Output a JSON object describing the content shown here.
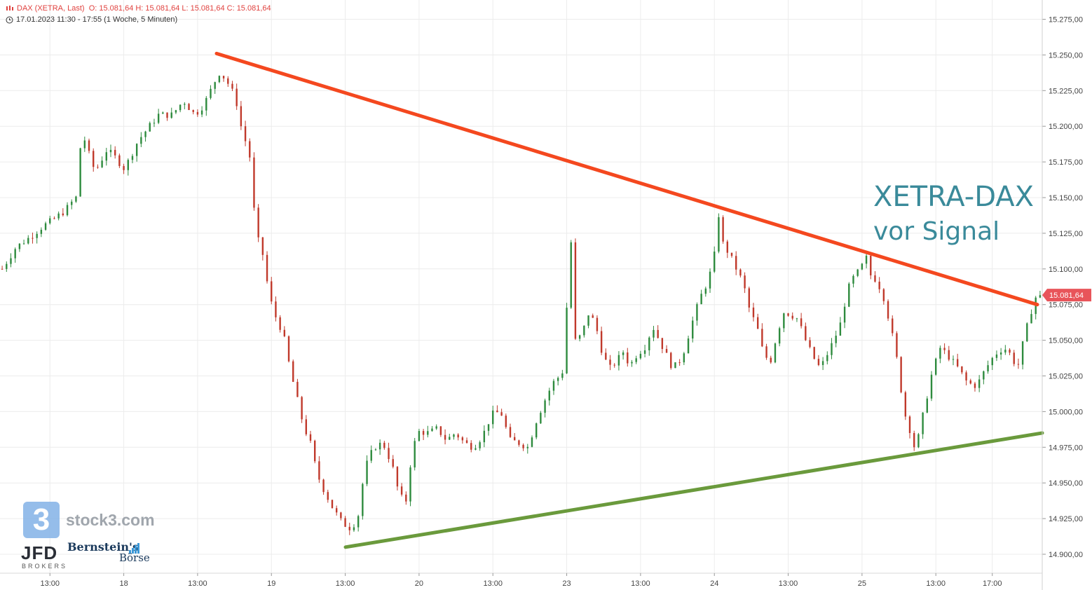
{
  "header": {
    "instrument": "DAX (XETRA, Last)",
    "ohlc": "O: 15.081,64  H: 15.081,64  L: 15.081,64  C: 15.081,64",
    "range": "17.01.2023 11:30 - 17:55   (1 Woche, 5 Minuten)"
  },
  "annotation": {
    "line1": "XETRA-DAX",
    "line2": "vor Signal"
  },
  "logos": {
    "stock3_mark": "3",
    "stock3": "stock3.com",
    "jfd": "JFD",
    "jfd_sub": "BROKERS",
    "bernstein": "Bernstein's",
    "boerse": "Börse"
  },
  "colors": {
    "up": "#2e8b3e",
    "down": "#c0392b",
    "resistance": "#f4481f",
    "support": "#6a9a3c",
    "price_tag": "#e8545a",
    "annotation": "#3a8a9a"
  },
  "chart_data": {
    "type": "candlestick",
    "instrument": "DAX (XETRA)",
    "interval": "5 Minuten",
    "ylim": [
      14890,
      15280
    ],
    "y_ticks": [
      "15.275,00",
      "15.250,00",
      "15.225,00",
      "15.200,00",
      "15.175,00",
      "15.150,00",
      "15.125,00",
      "15.100,00",
      "15.075,00",
      "15.050,00",
      "15.025,00",
      "15.000,00",
      "14.975,00",
      "14.950,00",
      "14.925,00",
      "14.900,00"
    ],
    "y_tick_values": [
      15275,
      15250,
      15225,
      15200,
      15175,
      15150,
      15125,
      15100,
      15075,
      15050,
      15025,
      15000,
      14975,
      14950,
      14925,
      14900
    ],
    "x_ticks": [
      "13:00",
      "18",
      "13:00",
      "19",
      "13:00",
      "20",
      "13:00",
      "23",
      "13:00",
      "24",
      "13:00",
      "25",
      "13:00",
      "17:00"
    ],
    "x_tick_index": [
      11,
      28,
      45,
      62,
      79,
      96,
      113,
      130,
      147,
      164,
      181,
      198,
      215,
      228
    ],
    "n_bars": 240,
    "last_price": 15081.64,
    "last_price_label": "15.081,64",
    "anchors": [
      [
        0,
        15100
      ],
      [
        6,
        15115
      ],
      [
        12,
        15122
      ],
      [
        18,
        15130
      ],
      [
        22,
        15134
      ],
      [
        27,
        15140
      ],
      [
        30,
        15145
      ],
      [
        32,
        15150
      ],
      [
        33,
        15150
      ],
      [
        34,
        15172
      ],
      [
        35,
        15198
      ],
      [
        38,
        15182
      ],
      [
        41,
        15168
      ],
      [
        46,
        15183
      ],
      [
        49,
        15180
      ],
      [
        54,
        15170
      ],
      [
        60,
        15190
      ],
      [
        63,
        15196
      ],
      [
        69,
        15208
      ],
      [
        75,
        15208
      ],
      [
        80,
        15218
      ],
      [
        85,
        15208
      ],
      [
        89,
        15215
      ],
      [
        94,
        15232
      ],
      [
        96,
        15238
      ],
      [
        99,
        15232
      ],
      [
        103,
        15220
      ],
      [
        106,
        15195
      ],
      [
        109,
        15183
      ],
      [
        112,
        15125
      ],
      [
        115,
        15110
      ],
      [
        118,
        15080
      ],
      [
        121,
        15065
      ],
      [
        124,
        15055
      ],
      [
        127,
        15030
      ],
      [
        130,
        15010
      ],
      [
        133,
        14990
      ],
      [
        136,
        14978
      ],
      [
        139,
        14956
      ],
      [
        142,
        14945
      ],
      [
        146,
        14932
      ],
      [
        150,
        14922
      ],
      [
        154,
        14918
      ],
      [
        157,
        14926
      ],
      [
        160,
        14960
      ],
      [
        164,
        14975
      ],
      [
        168,
        14978
      ],
      [
        172,
        14963
      ],
      [
        175,
        14943
      ],
      [
        178,
        14935
      ],
      [
        181,
        14974
      ],
      [
        184,
        14986
      ],
      [
        188,
        14985
      ],
      [
        192,
        14988
      ],
      [
        196,
        14980
      ],
      [
        200,
        14985
      ],
      [
        204,
        14978
      ],
      [
        208,
        14975
      ],
      [
        212,
        14983
      ],
      [
        216,
        14998
      ],
      [
        220,
        15000
      ],
      [
        224,
        14980
      ],
      [
        228,
        14978
      ],
      [
        232,
        14975
      ],
      [
        236,
        14995
      ],
      [
        240,
        15010
      ],
      [
        243,
        15020
      ],
      [
        246,
        15025
      ],
      [
        248,
        15030
      ],
      [
        249,
        15070
      ],
      [
        251,
        15120
      ],
      [
        253,
        15048
      ],
      [
        256,
        15055
      ],
      [
        259,
        15070
      ],
      [
        262,
        15060
      ],
      [
        265,
        15040
      ],
      [
        268,
        15030
      ],
      [
        271,
        15035
      ],
      [
        274,
        15042
      ],
      [
        277,
        15032
      ],
      [
        280,
        15040
      ],
      [
        284,
        15046
      ],
      [
        287,
        15060
      ],
      [
        290,
        15050
      ],
      [
        293,
        15040
      ],
      [
        296,
        15030
      ],
      [
        300,
        15038
      ],
      [
        304,
        15060
      ],
      [
        308,
        15080
      ],
      [
        311,
        15090
      ],
      [
        314,
        15105
      ],
      [
        316,
        15140
      ],
      [
        318,
        15118
      ],
      [
        321,
        15110
      ],
      [
        324,
        15100
      ],
      [
        327,
        15090
      ],
      [
        330,
        15070
      ],
      [
        333,
        15060
      ],
      [
        336,
        15040
      ],
      [
        339,
        15035
      ],
      [
        342,
        15055
      ],
      [
        345,
        15070
      ],
      [
        348,
        15068
      ],
      [
        351,
        15065
      ],
      [
        355,
        15048
      ],
      [
        358,
        15038
      ],
      [
        361,
        15030
      ],
      [
        364,
        15040
      ],
      [
        367,
        15050
      ],
      [
        370,
        15062
      ],
      [
        373,
        15085
      ],
      [
        376,
        15095
      ],
      [
        379,
        15100
      ],
      [
        381,
        15110
      ],
      [
        383,
        15096
      ],
      [
        386,
        15092
      ],
      [
        389,
        15080
      ],
      [
        392,
        15060
      ],
      [
        395,
        15035
      ],
      [
        398,
        15000
      ],
      [
        401,
        14985
      ],
      [
        403,
        14972
      ],
      [
        406,
        14995
      ],
      [
        410,
        15025
      ],
      [
        414,
        15045
      ],
      [
        418,
        15038
      ],
      [
        422,
        15030
      ],
      [
        426,
        15020
      ],
      [
        430,
        15018
      ],
      [
        434,
        15030
      ],
      [
        438,
        15040
      ],
      [
        442,
        15045
      ],
      [
        445,
        15040
      ],
      [
        448,
        15030
      ],
      [
        451,
        15052
      ],
      [
        454,
        15070
      ],
      [
        456,
        15080
      ],
      [
        458,
        15081.64
      ]
    ],
    "resistance_line": {
      "from": [
        "19 (early)",
        15251
      ],
      "to": [
        "25 (end)",
        15075
      ],
      "color": "red"
    },
    "support_line": {
      "from": [
        "19 (15:00)",
        14905
      ],
      "to": [
        "25 (end)",
        14985
      ],
      "color": "green"
    }
  }
}
